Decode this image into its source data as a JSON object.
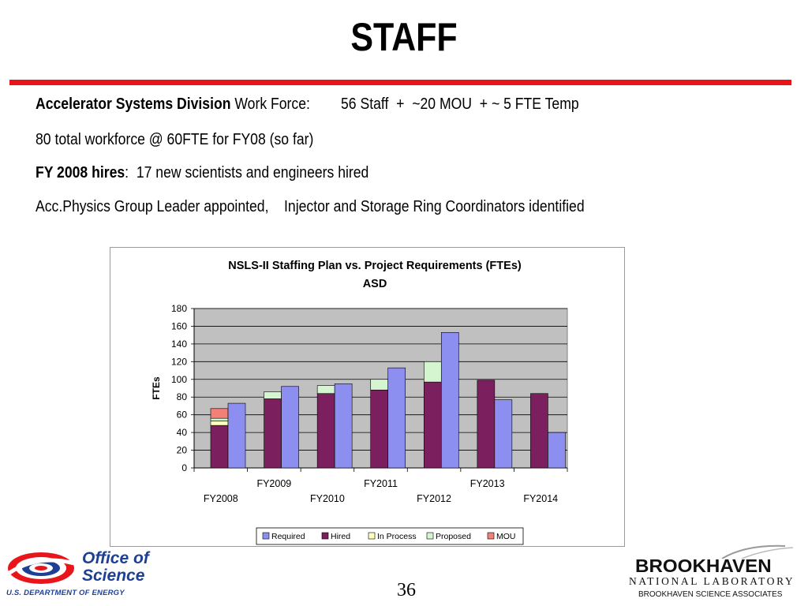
{
  "slide": {
    "title": "STAFF",
    "page_number": "36",
    "lines": {
      "l1_bold": "Accelerator Systems Division",
      "l1_rest": " Work Force:        56 Staff  +  ~20 MOU  + ~ 5 FTE Temp",
      "l2": "80 total workforce @ 60FTE for FY08 (so far)",
      "l3_bold": "FY 2008 hires",
      "l3_rest": ":  17 new scientists and engineers hired",
      "l4": "Acc.Physics Group Leader appointed,    Injector and Storage Ring Coordinators identified"
    },
    "logos": {
      "doe_line1": "Office of",
      "doe_line2": "Science",
      "doe_line3": "U.S. DEPARTMENT OF ENERGY",
      "bnl_main": "BROOKHAVEN",
      "bnl_sub": "NATIONAL LABORATORY",
      "bnl_assoc": "BROOKHAVEN SCIENCE ASSOCIATES"
    },
    "colors": {
      "accent_red": "#e8151b",
      "doe_blue": "#1d3f95"
    }
  },
  "chart_data": {
    "type": "bar",
    "title": "NSLS-II Staffing Plan vs. Project Requirements (FTEs)",
    "subtitle": "ASD",
    "ylabel": "FTEs",
    "xlabel": "",
    "ylim": [
      0,
      180
    ],
    "yticks": [
      0,
      20,
      40,
      60,
      80,
      100,
      120,
      140,
      160,
      180
    ],
    "grid": true,
    "legend_position": "bottom",
    "categories": [
      "FY2008",
      "FY2009",
      "FY2010",
      "FY2011",
      "FY2012",
      "FY2013",
      "FY2014"
    ],
    "stacked_series": [
      {
        "name": "Hired",
        "color": "#7b1f5e",
        "values": [
          48,
          78,
          84,
          88,
          97,
          99,
          84
        ]
      },
      {
        "name": "In Process",
        "color": "#ffffc0",
        "values": [
          5,
          0,
          0,
          0,
          0,
          0,
          0
        ]
      },
      {
        "name": "Proposed",
        "color": "#d4f5d0",
        "values": [
          3,
          8,
          9,
          12,
          23,
          0,
          0
        ]
      },
      {
        "name": "MOU",
        "color": "#f08078",
        "values": [
          11,
          0,
          0,
          0,
          0,
          0,
          0
        ]
      }
    ],
    "series": [
      {
        "name": "Required",
        "color": "#8c8ef0",
        "values": [
          73,
          92,
          95,
          113,
          153,
          77,
          40
        ]
      }
    ],
    "legend": [
      "Required",
      "Hired",
      "In Process",
      "Proposed",
      "MOU"
    ],
    "plot_background": "#c0c0c0"
  }
}
